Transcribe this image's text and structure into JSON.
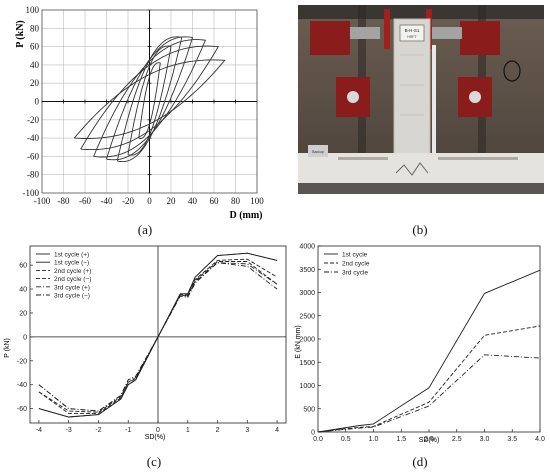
{
  "captions": {
    "a": "(a)",
    "b": "(b)",
    "c": "(c)",
    "d": "(d)"
  },
  "photo": {
    "placard_line1": "B-H-S1",
    "placard_line2": "HRFT",
    "side_label": "Backup"
  },
  "chart_data": [
    {
      "id": "a",
      "type": "line",
      "title": "",
      "xlabel": "D (mm)",
      "ylabel": "P (kN)",
      "xlim": [
        -100,
        100
      ],
      "ylim": [
        -100,
        100
      ],
      "xticks": [
        -100,
        -80,
        -60,
        -40,
        -20,
        0,
        20,
        40,
        60,
        80,
        100
      ],
      "yticks": [
        -100,
        -80,
        -60,
        -40,
        -20,
        0,
        20,
        40,
        60,
        80,
        100
      ],
      "grid": true,
      "axes_at_origin": true,
      "series": [
        {
          "hysteresis_loops": [
            {
              "dpos": 10,
              "ppos": 42,
              "dneg": -10,
              "pneg": -40
            },
            {
              "dpos": 20,
              "ppos": 60,
              "dneg": -20,
              "pneg": -58
            },
            {
              "dpos": 30,
              "ppos": 70,
              "dneg": -30,
              "pneg": -65
            },
            {
              "dpos": 40,
              "ppos": 70,
              "dneg": -40,
              "pneg": -63
            },
            {
              "dpos": 52,
              "ppos": 67,
              "dneg": -52,
              "pneg": -60
            },
            {
              "dpos": 64,
              "ppos": 60,
              "dneg": -64,
              "pneg": -52
            },
            {
              "dpos": 70,
              "ppos": 45,
              "dneg": -70,
              "pneg": -40
            }
          ]
        }
      ]
    },
    {
      "id": "c",
      "type": "line",
      "title": "",
      "xlabel": "SD(%)",
      "ylabel": "P (kN)",
      "xlim": [
        -4.3,
        4.3
      ],
      "ylim": [
        -72,
        76
      ],
      "xticks": [
        -4,
        -3,
        -2,
        -1,
        0,
        1,
        2,
        3,
        4
      ],
      "yticks": [
        -60,
        -40,
        -20,
        0,
        20,
        40,
        60
      ],
      "grid": false,
      "legend": "top-left",
      "x": [
        -4,
        -3,
        -2,
        -1.25,
        -1,
        -0.75,
        0,
        0.75,
        1,
        1.25,
        2,
        3,
        4
      ],
      "series": [
        {
          "name": "1st cycle (+)",
          "style": "solid",
          "values": [
            -60,
            -67,
            -65,
            -52,
            -40,
            -36,
            0,
            36,
            36,
            50,
            68,
            70,
            64
          ]
        },
        {
          "name": "1st cycle (−)",
          "style": "solid",
          "values": [
            -60,
            -67,
            -65,
            -52,
            -40,
            -36,
            0,
            36,
            36,
            50,
            68,
            70,
            64
          ]
        },
        {
          "name": "2nd cycle (+)",
          "style": "dashed",
          "values": [
            -46,
            -62,
            -63,
            -50,
            -38,
            -34,
            0,
            35,
            35,
            48,
            64,
            65,
            50
          ]
        },
        {
          "name": "2nd cycle (−)",
          "style": "dashed",
          "values": [
            -46,
            -64,
            -64,
            -51,
            -38,
            -35,
            0,
            35,
            34,
            47,
            63,
            63,
            44
          ]
        },
        {
          "name": "3rd cycle (+)",
          "style": "dashdot",
          "values": [
            -40,
            -60,
            -62,
            -49,
            -36,
            -33,
            0,
            35,
            34,
            46,
            62,
            61,
            44
          ]
        },
        {
          "name": "3rd cycle (−)",
          "style": "dashdot",
          "values": [
            -40,
            -60,
            -62,
            -49,
            -36,
            -33,
            0,
            34,
            33,
            45,
            62,
            59,
            40
          ]
        }
      ]
    },
    {
      "id": "d",
      "type": "line",
      "title": "",
      "xlabel": "SD(%)",
      "ylabel": "E (kN mm)",
      "xlim": [
        0,
        4
      ],
      "ylim": [
        0,
        4000
      ],
      "xticks": [
        0.0,
        0.5,
        1.0,
        1.5,
        2.0,
        2.5,
        3.0,
        3.5,
        4.0
      ],
      "xtick_labels": [
        "0.0",
        "0.5",
        "1.0",
        "1.5",
        "2.0",
        "2.5",
        "3.0",
        "3.5",
        "4.0"
      ],
      "yticks": [
        0,
        500,
        1000,
        1500,
        2000,
        2500,
        3000,
        3500,
        4000
      ],
      "grid": false,
      "legend": "top-left",
      "x": [
        0,
        0.75,
        1,
        2,
        3,
        4
      ],
      "series": [
        {
          "name": "1st cycle",
          "style": "solid",
          "values": [
            0,
            140,
            175,
            950,
            2980,
            3480
          ]
        },
        {
          "name": "2nd cycle",
          "style": "dashed",
          "values": [
            0,
            100,
            120,
            640,
            2080,
            2280
          ]
        },
        {
          "name": "3rd cycle",
          "style": "dashdot",
          "values": [
            0,
            85,
            105,
            560,
            1660,
            1590
          ]
        }
      ]
    }
  ]
}
